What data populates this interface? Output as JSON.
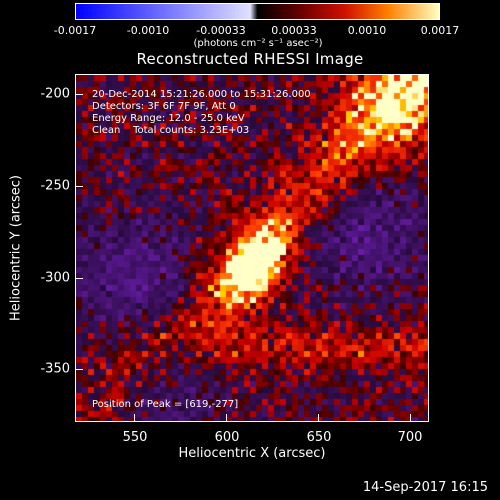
{
  "colorbar": {
    "labels": [
      "-0.0017",
      "-0.0010",
      "-0.00033",
      "0.00033",
      "0.0010",
      "0.0017"
    ],
    "unit": "(photons cm⁻² s⁻¹ asec⁻²)"
  },
  "plot": {
    "title": "Reconstructed RHESSI Image",
    "annotation": {
      "time": "20-Dec-2014 15:21:26.000 to 15:31:26.000",
      "detectors": "Detectors: 3F 6F 7F 9F, Att 0",
      "energy": "Energy Range: 12.0 - 25.0 keV",
      "clean": "Clean    Total counts: 3.23E+03",
      "peak": "Position of Peak = [619,-277]"
    },
    "xlabel": "Heliocentric X (arcsec)",
    "ylabel": "Heliocentric Y (arcsec)",
    "xticks": [
      "550",
      "600",
      "650",
      "700"
    ],
    "yticks": [
      "-200",
      "-250",
      "-300",
      "-350"
    ],
    "xlim": [
      519,
      712
    ],
    "ylim": [
      -385,
      -187
    ]
  },
  "timestamp": "14-Sep-2017 16:15",
  "colormap": {
    "neg_low": "#0000ff",
    "neg_high": "#ffffff",
    "pos_low": "#000000",
    "pos_mid1": "#b00000",
    "pos_mid2": "#ff4000",
    "pos_high": "#ffff80"
  }
}
